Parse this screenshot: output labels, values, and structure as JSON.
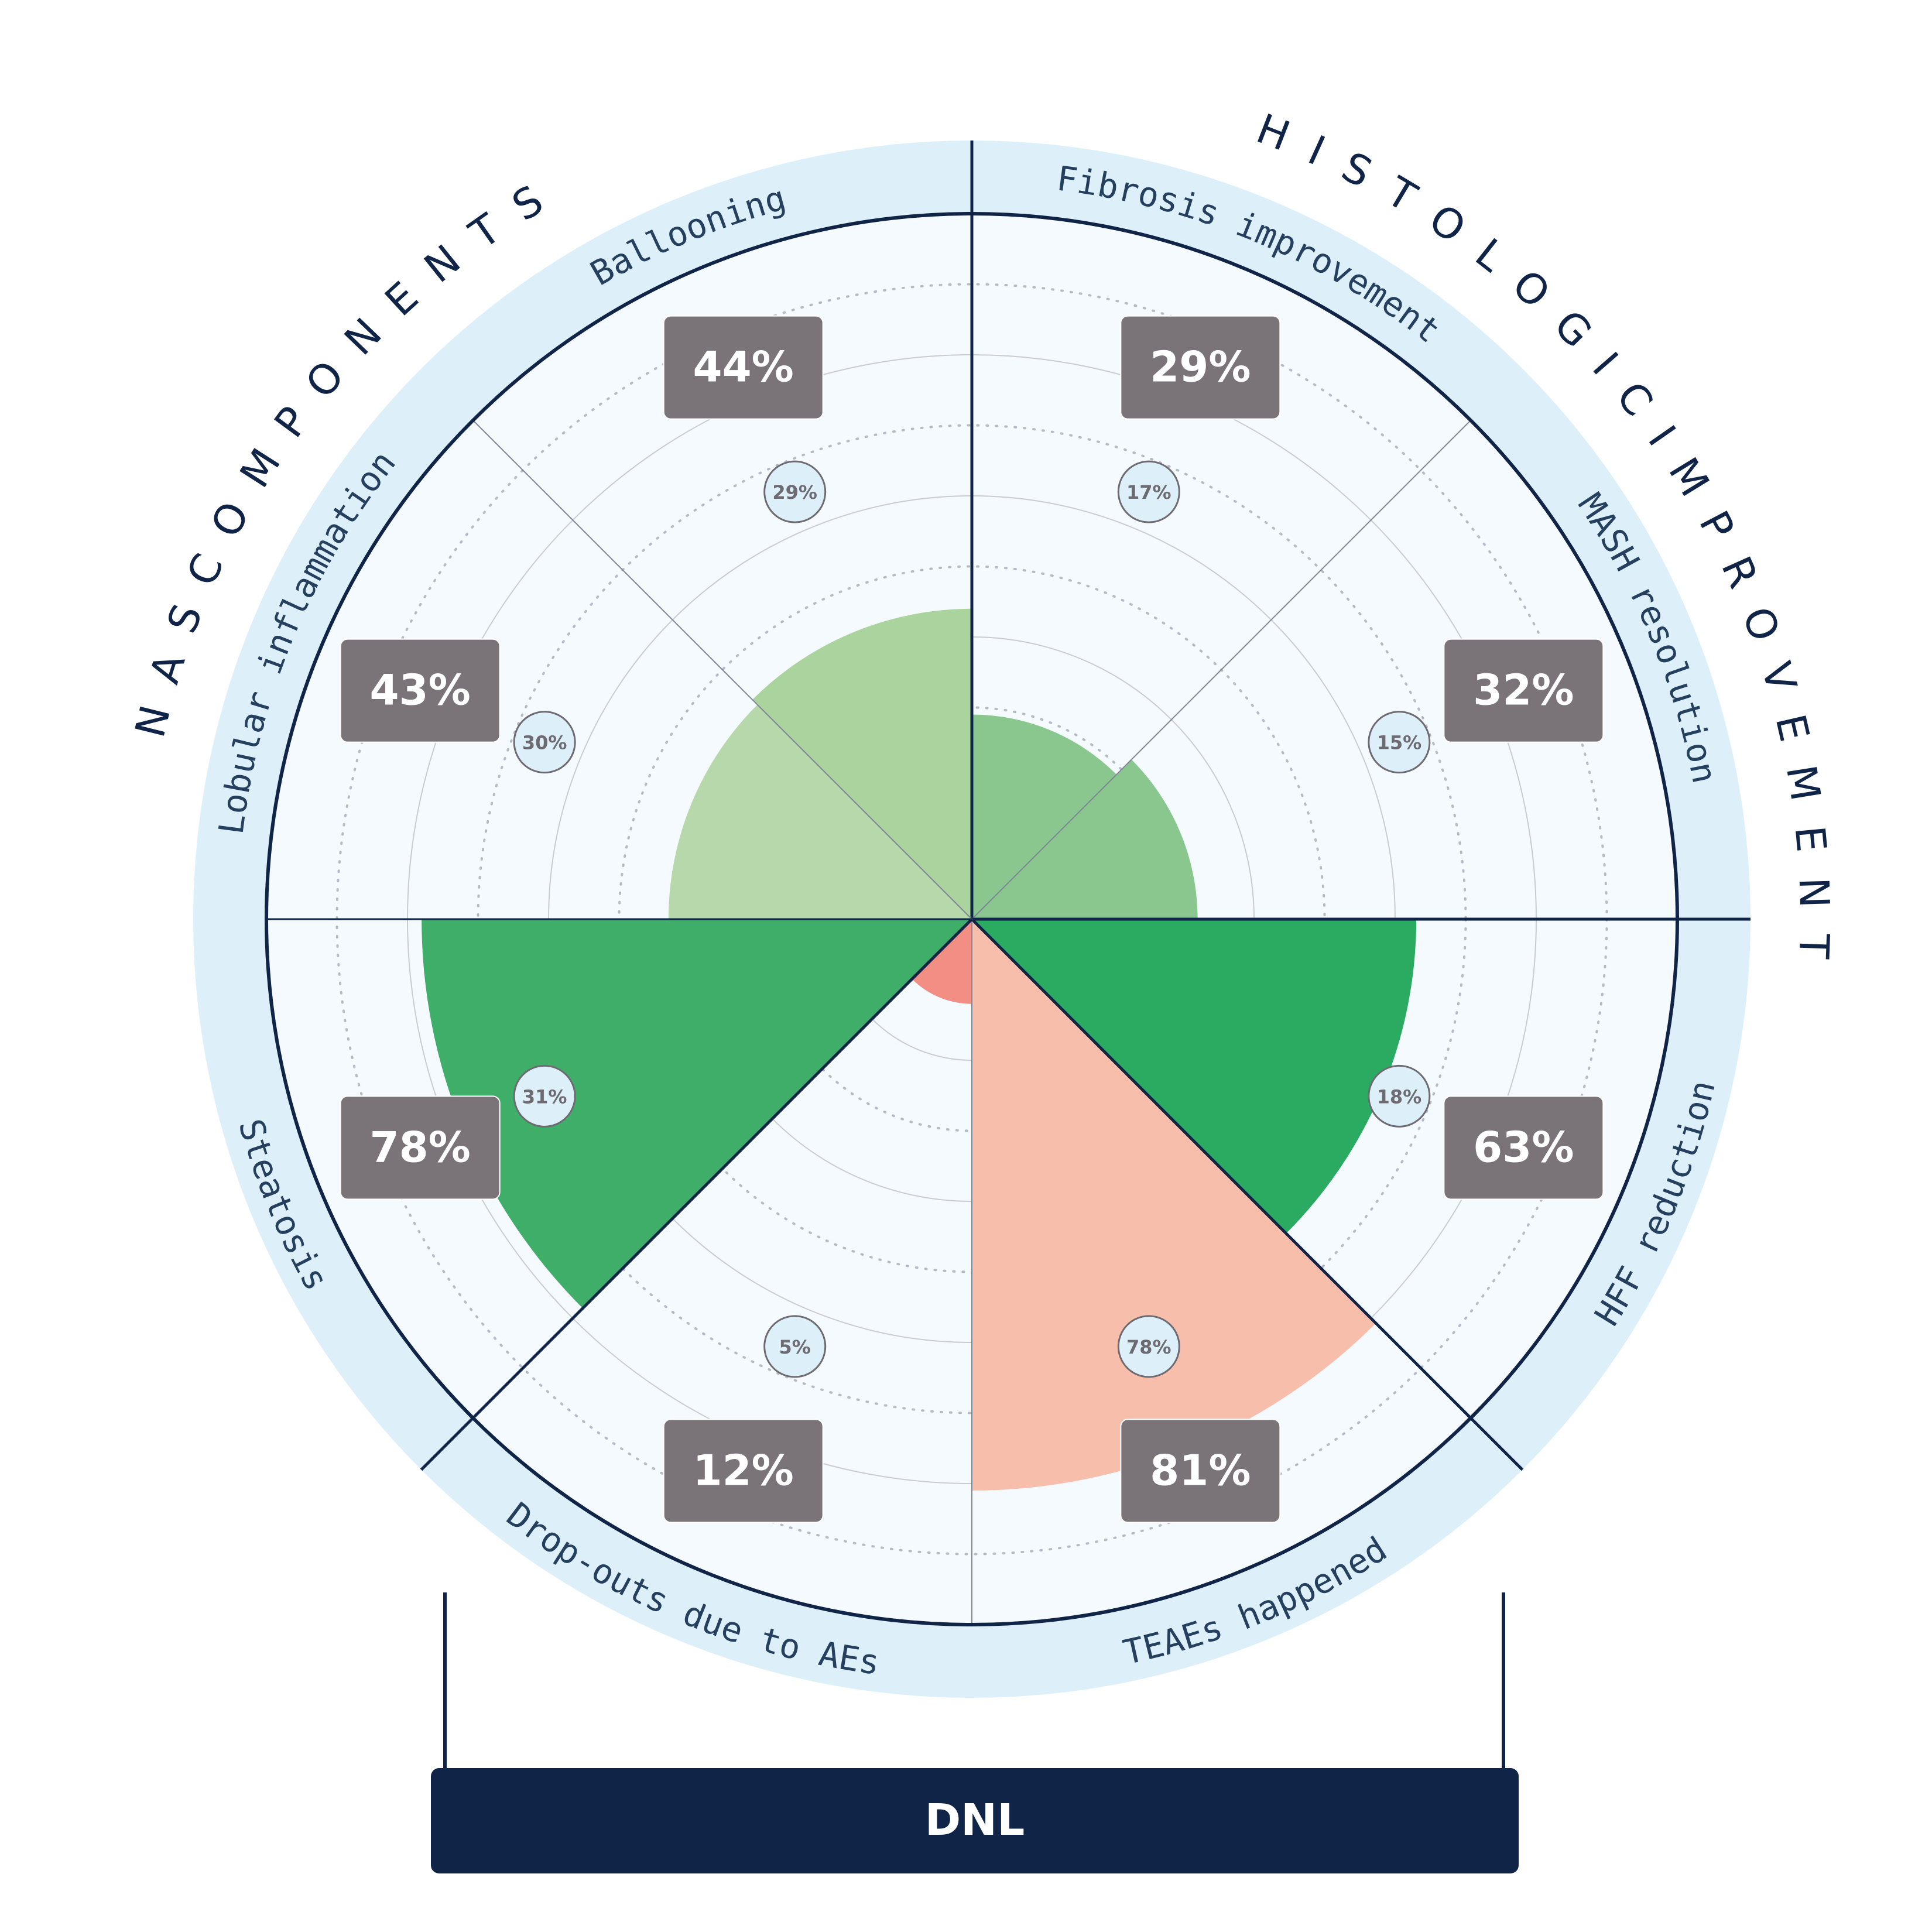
{
  "chart_data": {
    "type": "polar-area",
    "max_value": 100,
    "ring_step": 10,
    "categories": [
      "Fibrosis improvement",
      "MASH resolution",
      "HFF reduction",
      "TEAEs happened",
      "Drop-outs due to AEs",
      "Steatosis",
      "Lobular inflammation",
      "Ballooning"
    ],
    "values": [
      29,
      32,
      63,
      81,
      12,
      78,
      43,
      44
    ],
    "placebo_values": [
      17,
      15,
      18,
      78,
      5,
      31,
      30,
      29
    ],
    "value_labels": [
      "29%",
      "32%",
      "63%",
      "81%",
      "12%",
      "78%",
      "43%",
      "44%"
    ],
    "placebo_labels": [
      "17%",
      "15%",
      "18%",
      "78%",
      "5%",
      "31%",
      "30%",
      "29%"
    ],
    "colors": [
      "#8ac78e",
      "#8ac78e",
      "#2bab61",
      "#f7bfab",
      "#f28e84",
      "#3eae69",
      "#b7d8aa",
      "#abd39e"
    ],
    "groups": [
      {
        "label": "H I S T O L O G I C   I M P R O V E M E N T"
      },
      {
        "label": "N A S   C O M P O N E N T S"
      }
    ],
    "bottom_label": "DNL"
  },
  "colors": {
    "ring": "#ddf0fa",
    "plot_bg": "#f5faff",
    "navy": "#0f2446",
    "badge": "#7a7478",
    "badge_text": "#ffffff",
    "placebo_bg": "#ddf0fa",
    "label_text": "#24405e"
  }
}
